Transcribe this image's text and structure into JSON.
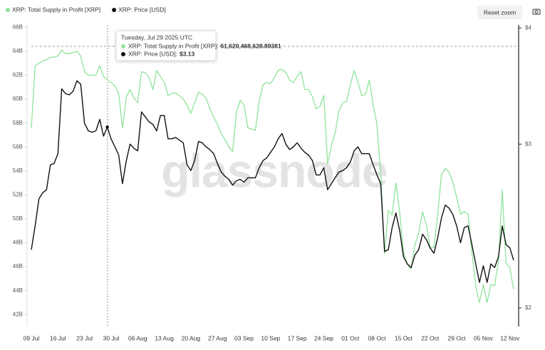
{
  "chart_data": {
    "type": "line",
    "categories": [
      "09 Jul",
      null,
      null,
      null,
      null,
      null,
      null,
      "16 Jul",
      null,
      null,
      null,
      null,
      null,
      null,
      "23 Jul",
      null,
      null,
      null,
      null,
      null,
      null,
      "30 Jul",
      null,
      null,
      null,
      null,
      null,
      null,
      "06 Aug",
      null,
      null,
      null,
      null,
      null,
      null,
      "13 Aug",
      null,
      null,
      null,
      null,
      null,
      null,
      "20 Aug",
      null,
      null,
      null,
      null,
      null,
      null,
      "27 Aug",
      null,
      null,
      null,
      null,
      null,
      null,
      "03 Sep",
      null,
      null,
      null,
      null,
      null,
      null,
      "10 Sep",
      null,
      null,
      null,
      null,
      null,
      null,
      "17 Sep",
      null,
      null,
      null,
      null,
      null,
      null,
      "24 Sep",
      null,
      null,
      null,
      null,
      null,
      null,
      "01 Oct",
      null,
      null,
      null,
      null,
      null,
      null,
      "08 Oct",
      null,
      null,
      null,
      null,
      null,
      null,
      "15 Oct",
      null,
      null,
      null,
      null,
      null,
      null,
      "22 Oct",
      null,
      null,
      null,
      null,
      null,
      null,
      "29 Oct",
      null,
      null,
      null,
      null,
      null,
      null,
      "05 Nov",
      null,
      null,
      null,
      null,
      null,
      null,
      "12 Nov",
      null
    ],
    "series": [
      {
        "name": "XRP: Total Supply in Profit [XRP]",
        "color": "#8fe49a",
        "axis": "y",
        "values": [
          57.6,
          62.8,
          63,
          63.2,
          63.3,
          63.5,
          63.5,
          63.6,
          64.1,
          63.8,
          63.8,
          63.9,
          64,
          63.6,
          62.3,
          62,
          62,
          62,
          62.8,
          61.9,
          61.62,
          61.4,
          61.1,
          60.5,
          57.6,
          60.2,
          60.8,
          60.1,
          59.7,
          62.3,
          62.2,
          61.8,
          60.8,
          62.4,
          61.9,
          61.4,
          60.3,
          60.5,
          60.5,
          60.3,
          60,
          59.5,
          58.8,
          59.7,
          60.6,
          60.4,
          60.1,
          59.2,
          58.5,
          57.9,
          57.1,
          56.6,
          56,
          55.6,
          58.9,
          59.9,
          59.5,
          57.6,
          57.5,
          57.4,
          59.8,
          61.2,
          61.4,
          61.3,
          61.8,
          62.4,
          62.5,
          62.2,
          61.6,
          61.4,
          61.9,
          62.3,
          60.8,
          60.8,
          60.2,
          59.2,
          59.4,
          60.3,
          54.6,
          56.1,
          57.2,
          59,
          59.7,
          59.8,
          61.2,
          62.4,
          61.4,
          60.3,
          60.4,
          61.6,
          59.5,
          57.9,
          53.7,
          47.1,
          50.7,
          50.3,
          53,
          50.5,
          47.2,
          46.2,
          45.8,
          47.8,
          48.8,
          50.6,
          49.5,
          47.6,
          47.6,
          50.4,
          53.7,
          54.2,
          53.9,
          53,
          51.8,
          50.4,
          50.6,
          50.4,
          47.2,
          44.4,
          43,
          44.5,
          43,
          44.5,
          44.4,
          46.5,
          52.4,
          46.3,
          45.9,
          44.1
        ]
      },
      {
        "name": "XRP: Price [USD]",
        "color": "#111111",
        "axis": "y2",
        "values": [
          2.31,
          2.45,
          2.62,
          2.66,
          2.68,
          2.85,
          2.86,
          2.93,
          3.44,
          3.4,
          3.39,
          3.42,
          3.51,
          3.48,
          3.16,
          3.1,
          3.09,
          3.1,
          3.19,
          3.06,
          3.13,
          3.04,
          2.98,
          2.92,
          2.72,
          2.88,
          3,
          2.97,
          2.95,
          3.25,
          3.21,
          3.17,
          3.15,
          3.1,
          3.22,
          3.22,
          3.04,
          3.04,
          3.05,
          3.03,
          3.01,
          2.85,
          2.81,
          2.88,
          3.02,
          3.01,
          2.98,
          2.96,
          2.93,
          2.86,
          2.8,
          2.77,
          2.75,
          2.71,
          2.74,
          2.75,
          2.73,
          2.76,
          2.76,
          2.76,
          2.83,
          2.88,
          2.9,
          2.94,
          2.98,
          3.04,
          3.08,
          3,
          2.96,
          2.98,
          3.01,
          2.97,
          2.94,
          2.92,
          2.88,
          2.78,
          2.78,
          2.83,
          2.68,
          2.72,
          2.76,
          2.8,
          2.81,
          2.83,
          2.87,
          2.95,
          2.98,
          2.93,
          2.93,
          2.93,
          2.85,
          2.78,
          2.72,
          2.3,
          2.31,
          2.44,
          2.53,
          2.42,
          2.27,
          2.23,
          2.21,
          2.28,
          2.31,
          2.4,
          2.37,
          2.32,
          2.29,
          2.38,
          2.5,
          2.58,
          2.56,
          2.52,
          2.45,
          2.35,
          2.44,
          2.45,
          2.34,
          2.23,
          2.13,
          2.22,
          2.13,
          2.23,
          2.21,
          2.27,
          2.45,
          2.34,
          2.32,
          2.25
        ]
      }
    ],
    "ylim": [
      41,
      66.2
    ],
    "yticks": [
      {
        "value": 42,
        "label": "42B"
      },
      {
        "value": 44,
        "label": "44B"
      },
      {
        "value": 46,
        "label": "46B"
      },
      {
        "value": 48,
        "label": "48B"
      },
      {
        "value": 50,
        "label": "50B"
      },
      {
        "value": 52,
        "label": "52B"
      },
      {
        "value": 54,
        "label": "54B"
      },
      {
        "value": 56,
        "label": "56B"
      },
      {
        "value": 58,
        "label": "58B"
      },
      {
        "value": 60,
        "label": "60B"
      },
      {
        "value": 62,
        "label": "62B"
      },
      {
        "value": 64,
        "label": "64B"
      },
      {
        "value": 66,
        "label": "66B"
      }
    ],
    "y2lim": [
      1.91,
      4.03
    ],
    "y2log": true,
    "y2ticks": [
      {
        "value": 2,
        "label": "$2"
      },
      {
        "value": 3,
        "label": "$3"
      },
      {
        "value": 4,
        "label": "$4"
      }
    ],
    "grid": false,
    "legend": "top-left",
    "watermark": "glassnode"
  },
  "tooltip": {
    "title": "Tuesday, Jul 29 2025 UTC",
    "rows": [
      {
        "label": "XRP: Total Supply in Profit [XRP]:",
        "value": "61,620,468,628.89381"
      },
      {
        "label": "XRP: Price [USD]:",
        "value": "$3.13"
      }
    ]
  },
  "toolbar": {
    "reset": "Reset zoom"
  }
}
